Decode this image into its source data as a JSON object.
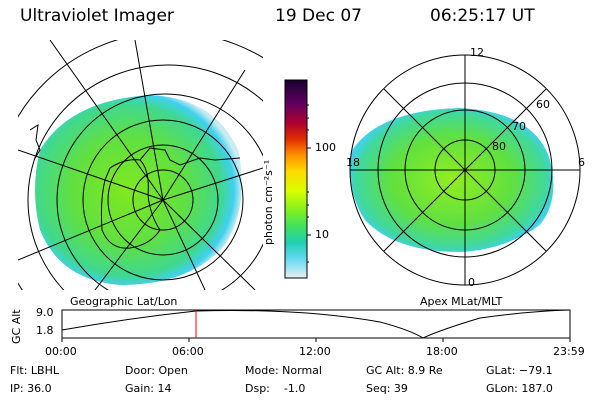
{
  "header": {
    "instrument": "Ultraviolet Imager",
    "date": "19 Dec 07",
    "time": "06:25:17 UT"
  },
  "geo_panel": {
    "label": "Geographic Lat/Lon"
  },
  "apex_panel": {
    "label": "Apex MLat/MLT",
    "mlt_labels": [
      "12",
      "18",
      "6",
      "0"
    ],
    "mlat_labels": [
      "60",
      "70",
      "80"
    ]
  },
  "colorbar": {
    "unit_label": "photon cm⁻²s⁻¹",
    "ticks": [
      "100",
      "10"
    ],
    "colors": [
      "#1a0030",
      "#500060",
      "#900040",
      "#c00010",
      "#e04000",
      "#ff9000",
      "#ffd000",
      "#e8ff00",
      "#a0ff00",
      "#40e040",
      "#20d0a0",
      "#40d0f0",
      "#a0e8f0",
      "#e0f0f0"
    ]
  },
  "altitude_plot": {
    "ylabel": "GC Alt",
    "yticks": [
      "9.0",
      "1.8"
    ],
    "xticks": [
      "00:00",
      "06:00",
      "12:00",
      "18:00",
      "23:59"
    ],
    "marker_color": "#ff0000"
  },
  "status": {
    "filter": "Flt: LBHL",
    "ip": "IP: 36.0",
    "door": "Door: Open",
    "gain": "Gain: 14",
    "mode": "Mode: Normal",
    "dsp": "Dsp:    -1.0",
    "gc_alt": "GC Alt: 8.9 Re",
    "seq": "Seq: 39",
    "glat": "GLat: −79.1",
    "glon": "GLon: 187.0"
  }
}
